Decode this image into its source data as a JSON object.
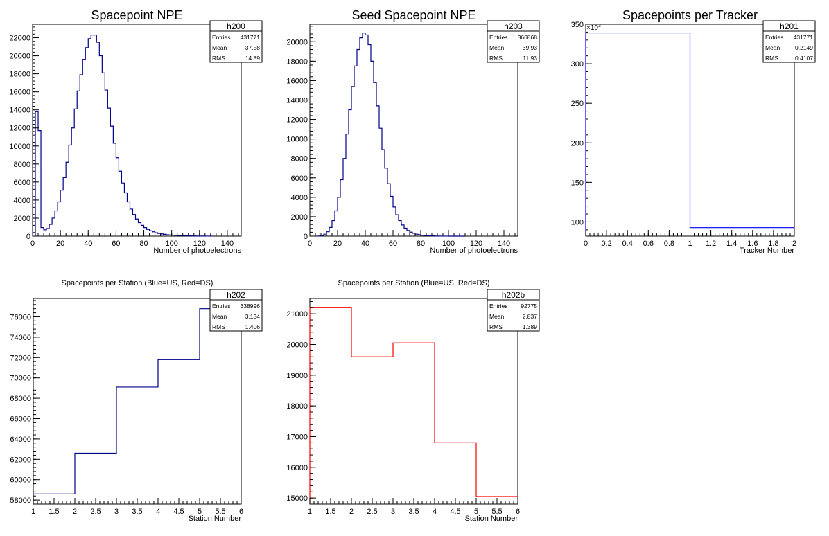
{
  "chart_data": [
    {
      "id": "h200",
      "type": "histogram",
      "title": "Spacepoint NPE",
      "xlabel": "Number of photoelectrons",
      "ylabel": "",
      "xlim": [
        0,
        150
      ],
      "ylim": [
        0,
        23500
      ],
      "xticks": [
        0,
        20,
        40,
        60,
        80,
        100,
        120,
        140
      ],
      "yticks": [
        0,
        2000,
        4000,
        6000,
        8000,
        10000,
        12000,
        14000,
        16000,
        18000,
        20000,
        22000
      ],
      "tick_labels_x": [
        "0",
        "20",
        "40",
        "60",
        "80",
        "100",
        "120",
        "140"
      ],
      "tick_labels_y": [
        "0",
        "2000",
        "4000",
        "6000",
        "8000",
        "10000",
        "12000",
        "14000",
        "16000",
        "18000",
        "20000",
        "22000"
      ],
      "color": "#00008b",
      "bin_width": 2,
      "bin_start": 2,
      "values": [
        13800,
        11700,
        950,
        700,
        850,
        1300,
        2000,
        2800,
        3800,
        5100,
        6500,
        8200,
        10100,
        12000,
        14100,
        16100,
        17900,
        19600,
        20900,
        21900,
        22300,
        22300,
        21500,
        20000,
        18100,
        16200,
        14200,
        12200,
        10300,
        8700,
        7200,
        5900,
        4800,
        3800,
        3000,
        2400,
        1900,
        1500,
        1200,
        950,
        750,
        600,
        480,
        380,
        300,
        240,
        200,
        160,
        130,
        110,
        90,
        75,
        60,
        50,
        40,
        30,
        25,
        20,
        15,
        10,
        8,
        6,
        5,
        4
      ],
      "stats": {
        "name": "h200",
        "entries_label": "Entries",
        "entries": "431771",
        "mean_label": "Mean",
        "mean": "37.58",
        "rms_label": "RMS",
        "rms": "14.89"
      }
    },
    {
      "id": "h203",
      "type": "histogram",
      "title": "Seed Spacepoint NPE",
      "xlabel": "Number of photoelectrons",
      "ylabel": "",
      "xlim": [
        0,
        150
      ],
      "ylim": [
        0,
        21800
      ],
      "xticks": [
        0,
        20,
        40,
        60,
        80,
        100,
        120,
        140
      ],
      "yticks": [
        0,
        2000,
        4000,
        6000,
        8000,
        10000,
        12000,
        14000,
        16000,
        18000,
        20000
      ],
      "tick_labels_x": [
        "0",
        "20",
        "40",
        "60",
        "80",
        "100",
        "120",
        "140"
      ],
      "tick_labels_y": [
        "0",
        "2000",
        "4000",
        "6000",
        "8000",
        "10000",
        "12000",
        "14000",
        "16000",
        "18000",
        "20000"
      ],
      "color": "#00008b",
      "bin_width": 2,
      "bin_start": 6,
      "values": [
        10,
        80,
        200,
        450,
        900,
        1600,
        2600,
        4000,
        5800,
        8000,
        10500,
        13000,
        15400,
        17500,
        19200,
        20400,
        20900,
        20700,
        19700,
        18000,
        15800,
        13400,
        11100,
        8900,
        7000,
        5400,
        4100,
        3000,
        2200,
        1600,
        1150,
        820,
        580,
        410,
        290,
        200,
        140,
        100,
        70,
        50,
        35,
        25,
        15,
        10,
        6,
        4,
        3,
        2,
        1,
        1,
        1,
        1,
        1
      ],
      "stats": {
        "name": "h203",
        "entries_label": "Entries",
        "entries": "366868",
        "mean_label": "Mean",
        "mean": "39.93",
        "rms_label": "RMS",
        "rms": "11.93"
      }
    },
    {
      "id": "h201",
      "type": "histogram",
      "title": "Spacepoints per Tracker",
      "xlabel": "Tracker Number",
      "ylabel": "",
      "xlim": [
        0,
        2
      ],
      "ylim": [
        82000,
        350000
      ],
      "xticks": [
        0,
        0.2,
        0.4,
        0.6,
        0.8,
        1,
        1.2,
        1.4,
        1.6,
        1.8,
        2
      ],
      "yticks": [
        100000,
        150000,
        200000,
        250000,
        300000,
        350000
      ],
      "tick_labels_x": [
        "0",
        "0.2",
        "0.4",
        "0.6",
        "0.8",
        "1",
        "1.2",
        "1.4",
        "1.6",
        "1.8",
        "2"
      ],
      "tick_labels_y": [
        "100",
        "150",
        "200",
        "250",
        "300",
        "350"
      ],
      "y_multiplier": "×10",
      "y_multiplier_exp": "3",
      "color": "#0000ff",
      "bin_width": 1,
      "bin_start": 0,
      "values": [
        338996,
        92775
      ],
      "stats": {
        "name": "h201",
        "entries_label": "Entries",
        "entries": "431771",
        "mean_label": "Mean",
        "mean": "0.2149",
        "rms_label": "RMS",
        "rms": "0.4107"
      }
    },
    {
      "id": "h202",
      "type": "histogram",
      "title": "Spacepoints per Station (Blue=US, Red=DS)",
      "xlabel": "Station Number",
      "ylabel": "",
      "xlim": [
        1,
        6
      ],
      "ylim": [
        57600,
        77800
      ],
      "xticks": [
        1,
        1.5,
        2,
        2.5,
        3,
        3.5,
        4,
        4.5,
        5,
        5.5,
        6
      ],
      "yticks": [
        58000,
        60000,
        62000,
        64000,
        66000,
        68000,
        70000,
        72000,
        74000,
        76000
      ],
      "tick_labels_x": [
        "1",
        "1.5",
        "2",
        "2.5",
        "3",
        "3.5",
        "4",
        "4.5",
        "5",
        "5.5",
        "6"
      ],
      "tick_labels_y": [
        "58000",
        "60000",
        "62000",
        "64000",
        "66000",
        "68000",
        "70000",
        "72000",
        "74000",
        "76000"
      ],
      "color": "#00008b",
      "bin_width": 1,
      "bin_start": 1,
      "values": [
        58600,
        62600,
        69100,
        71800,
        76800
      ],
      "stats": {
        "name": "h202",
        "entries_label": "Entries",
        "entries": "338996",
        "mean_label": "Mean",
        "mean": "3.134",
        "rms_label": "RMS",
        "rms": "1.406"
      }
    },
    {
      "id": "h202b",
      "type": "histogram",
      "title": "Spacepoints per Station (Blue=US, Red=DS)",
      "xlabel": "Station Number",
      "ylabel": "",
      "xlim": [
        1,
        6
      ],
      "ylim": [
        14800,
        21500
      ],
      "xticks": [
        1,
        1.5,
        2,
        2.5,
        3,
        3.5,
        4,
        4.5,
        5,
        5.5,
        6
      ],
      "yticks": [
        15000,
        16000,
        17000,
        18000,
        19000,
        20000,
        21000
      ],
      "tick_labels_x": [
        "1",
        "1.5",
        "2",
        "2.5",
        "3",
        "3.5",
        "4",
        "4.5",
        "5",
        "5.5",
        "6"
      ],
      "tick_labels_y": [
        "15000",
        "16000",
        "17000",
        "18000",
        "19000",
        "20000",
        "21000"
      ],
      "color": "#ff0000",
      "bin_width": 1,
      "bin_start": 1,
      "values": [
        21200,
        19600,
        20050,
        16800,
        15050
      ],
      "stats": {
        "name": "h202b",
        "entries_label": "Entries",
        "entries": "92775",
        "mean_label": "Mean",
        "mean": "2.837",
        "rms_label": "RMS",
        "rms": "1.389"
      }
    }
  ]
}
